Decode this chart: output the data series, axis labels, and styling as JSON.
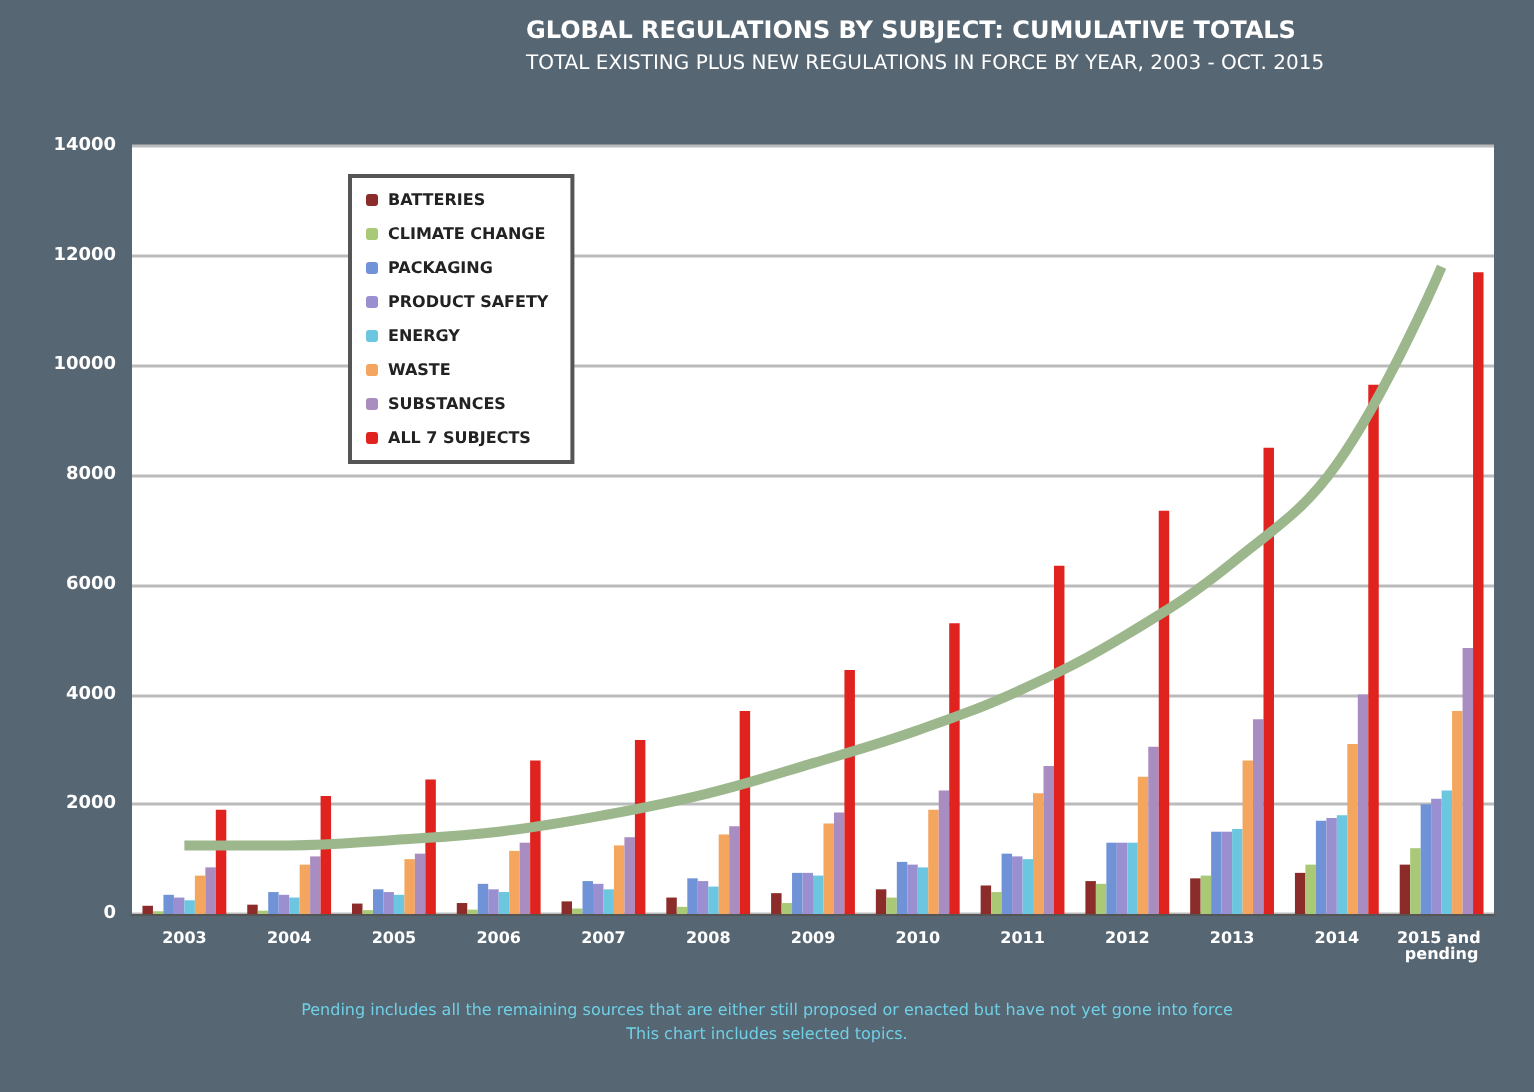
{
  "chart_data": {
    "type": "bar",
    "title": "GLOBAL REGULATIONS BY SUBJECT: CUMULATIVE TOTALS",
    "subtitle": "TOTAL EXISTING PLUS NEW REGULATIONS IN FORCE BY YEAR, 2003 - OCT. 2015",
    "categories": [
      "2003",
      "2004",
      "2005",
      "2006",
      "2007",
      "2008",
      "2009",
      "2010",
      "2011",
      "2012",
      "2013",
      "2014",
      "2015 and pending"
    ],
    "series": [
      {
        "name": "BATTERIES",
        "color": "#8b2c2a",
        "values": [
          150,
          170,
          190,
          200,
          230,
          300,
          380,
          450,
          520,
          600,
          650,
          750,
          900
        ]
      },
      {
        "name": "CLIMATE CHANGE",
        "color": "#a9c977",
        "values": [
          50,
          60,
          70,
          80,
          100,
          130,
          200,
          300,
          400,
          550,
          700,
          900,
          1200
        ]
      },
      {
        "name": "PACKAGING",
        "color": "#6f93d6",
        "values": [
          350,
          400,
          450,
          550,
          600,
          650,
          750,
          950,
          1100,
          1300,
          1500,
          1700,
          2000
        ]
      },
      {
        "name": "PRODUCT SAFETY",
        "color": "#9a8fd0",
        "values": [
          300,
          350,
          400,
          450,
          550,
          600,
          750,
          900,
          1050,
          1300,
          1500,
          1750,
          2100
        ]
      },
      {
        "name": "ENERGY",
        "color": "#6cc6e0",
        "values": [
          250,
          300,
          350,
          400,
          450,
          500,
          700,
          850,
          1000,
          1300,
          1550,
          1800,
          2250
        ]
      },
      {
        "name": "WASTE",
        "color": "#f4a55e",
        "values": [
          700,
          900,
          1000,
          1150,
          1250,
          1450,
          1650,
          1900,
          2200,
          2500,
          2800,
          3100,
          3700
        ]
      },
      {
        "name": "SUBSTANCES",
        "color": "#a98cc0",
        "values": [
          850,
          1050,
          1100,
          1300,
          1400,
          1600,
          1850,
          2250,
          2700,
          3050,
          3550,
          4000,
          4850
        ]
      },
      {
        "name": "ALL 7 SUBJECTS",
        "color": "#e0231f",
        "values": [
          1900,
          2150,
          2450,
          2800,
          3170,
          3700,
          4450,
          5300,
          6350,
          7350,
          8500,
          9650,
          11700
        ]
      },
      {
        "type": "line",
        "color": "#9cb78c",
        "values": [
          1250,
          1250,
          1350,
          1500,
          1800,
          2200,
          2750,
          3350,
          4100,
          5100,
          6400,
          8200,
          11800
        ]
      }
    ],
    "ylim": [
      0,
      14000
    ],
    "yticks": [
      0,
      2000,
      4000,
      6000,
      8000,
      10000,
      12000,
      14000
    ],
    "grid": "y",
    "legend": "top left",
    "marker": "none",
    "annotations": [
      "Pending includes all the remaining sources that are either still proposed or enacted but have not yet gone into force",
      "This chart includes selected topics."
    ]
  }
}
